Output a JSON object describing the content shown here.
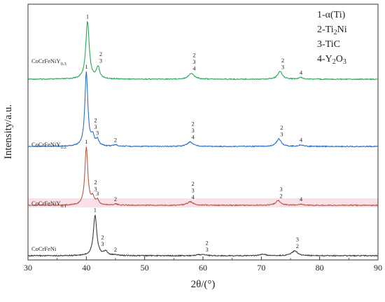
{
  "chart_data": {
    "type": "line",
    "title": "",
    "xlabel": "2θ/(°)",
    "ylabel": "Intensity/a.u.",
    "xlim": [
      30,
      90
    ],
    "x_ticks": [
      "30",
      "40",
      "50",
      "60",
      "70",
      "80",
      "90"
    ],
    "legend": {
      "placement": "top-right",
      "entries": [
        {
          "num": "1-",
          "main": "α(Ti)",
          "sub": ""
        },
        {
          "num": "2-",
          "main": "Ti",
          "sub": "2",
          "tail": "Ni"
        },
        {
          "num": "3-",
          "main": "TiC",
          "sub": ""
        },
        {
          "num": "4-",
          "main": "Y",
          "sub": "2",
          "tail": "O",
          "sub2": "3"
        }
      ]
    },
    "series": [
      {
        "name_main": "CoCrFeNiY",
        "name_sub": "0.3",
        "color": "#2aa85a",
        "baseline": 0.0,
        "peaks": [
          {
            "x": 40.2,
            "h": 1.0,
            "w": 0.35
          },
          {
            "x": 42.0,
            "h": 0.2,
            "w": 0.35
          },
          {
            "x": 58.0,
            "h": 0.1,
            "w": 0.6
          },
          {
            "x": 73.2,
            "h": 0.13,
            "w": 0.5
          },
          {
            "x": 76.8,
            "h": 0.03,
            "w": 0.4
          }
        ],
        "annotations": [
          {
            "x": 40.2,
            "labels": [
              "1"
            ]
          },
          {
            "x": 42.0,
            "labels": [
              "2",
              "3"
            ]
          },
          {
            "x": 58.0,
            "labels": [
              "2",
              "3",
              "4"
            ]
          },
          {
            "x": 73.2,
            "labels": [
              "2",
              "3"
            ]
          },
          {
            "x": 76.8,
            "labels": [
              "4"
            ]
          }
        ]
      },
      {
        "name_main": "CoCrFeNiY",
        "name_sub": "0.2",
        "color": "#2a6fc8",
        "baseline": 0.0,
        "peaks": [
          {
            "x": 40.0,
            "h": 1.0,
            "w": 0.3
          },
          {
            "x": 41.1,
            "h": 0.12,
            "w": 0.3
          },
          {
            "x": 41.9,
            "h": 0.08,
            "w": 0.3
          },
          {
            "x": 45.0,
            "h": 0.02,
            "w": 0.4
          },
          {
            "x": 57.8,
            "h": 0.06,
            "w": 0.6
          },
          {
            "x": 73.0,
            "h": 0.1,
            "w": 0.5
          },
          {
            "x": 76.8,
            "h": 0.02,
            "w": 0.4
          }
        ],
        "annotations": [
          {
            "x": 40.0,
            "labels": [
              "1"
            ]
          },
          {
            "x": 41.1,
            "labels": [
              "2",
              "3"
            ]
          },
          {
            "x": 41.9,
            "labels": [
              "3"
            ]
          },
          {
            "x": 45.0,
            "labels": [
              "2"
            ]
          },
          {
            "x": 57.8,
            "labels": [
              "2",
              "3",
              "4"
            ]
          },
          {
            "x": 73.0,
            "labels": [
              "2",
              "3"
            ]
          },
          {
            "x": 76.8,
            "labels": [
              "4"
            ]
          }
        ]
      },
      {
        "name_main": "CoCrFeNiY",
        "name_sub": "0.1",
        "color": "#b55a45",
        "baseline": 0.0,
        "peaks": [
          {
            "x": 40.0,
            "h": 1.0,
            "w": 0.3
          },
          {
            "x": 41.1,
            "h": 0.12,
            "w": 0.3
          },
          {
            "x": 41.9,
            "h": 0.08,
            "w": 0.3
          },
          {
            "x": 45.0,
            "h": 0.02,
            "w": 0.4
          },
          {
            "x": 57.8,
            "h": 0.06,
            "w": 0.6
          },
          {
            "x": 72.9,
            "h": 0.08,
            "w": 0.5
          },
          {
            "x": 76.8,
            "h": 0.02,
            "w": 0.4
          }
        ],
        "annotations": [
          {
            "x": 40.0,
            "labels": [
              "1"
            ]
          },
          {
            "x": 41.1,
            "labels": [
              "2",
              "3"
            ]
          },
          {
            "x": 41.9,
            "labels": [
              "3"
            ]
          },
          {
            "x": 45.0,
            "labels": [
              "2"
            ]
          },
          {
            "x": 57.8,
            "labels": [
              "2",
              "3",
              "4"
            ]
          },
          {
            "x": 72.9,
            "labels": [
              "3",
              "2"
            ]
          },
          {
            "x": 76.8,
            "labels": [
              "4"
            ]
          }
        ]
      },
      {
        "name_main": "CoCrFeNi",
        "name_sub": "",
        "color": "#3a3a3a",
        "baseline": 0.0,
        "peaks": [
          {
            "x": 41.5,
            "h": 1.0,
            "w": 0.35
          },
          {
            "x": 43.3,
            "h": 0.1,
            "w": 0.4
          },
          {
            "x": 45.0,
            "h": 0.02,
            "w": 0.4
          },
          {
            "x": 59.2,
            "h": 0.02,
            "w": 0.5
          },
          {
            "x": 60.2,
            "h": 0.03,
            "w": 0.5
          },
          {
            "x": 70.3,
            "h": 0.04,
            "w": 0.5
          },
          {
            "x": 75.7,
            "h": 0.12,
            "w": 0.6
          }
        ],
        "annotations": [
          {
            "x": 41.5,
            "labels": [
              "1"
            ]
          },
          {
            "x": 42.3,
            "labels": [
              "2",
              "3"
            ]
          },
          {
            "x": 45.0,
            "labels": [
              "2"
            ]
          },
          {
            "x": 60.2,
            "labels": [
              "2",
              "3"
            ]
          },
          {
            "x": 75.7,
            "labels": [
              "3",
              "2"
            ]
          }
        ]
      }
    ]
  }
}
